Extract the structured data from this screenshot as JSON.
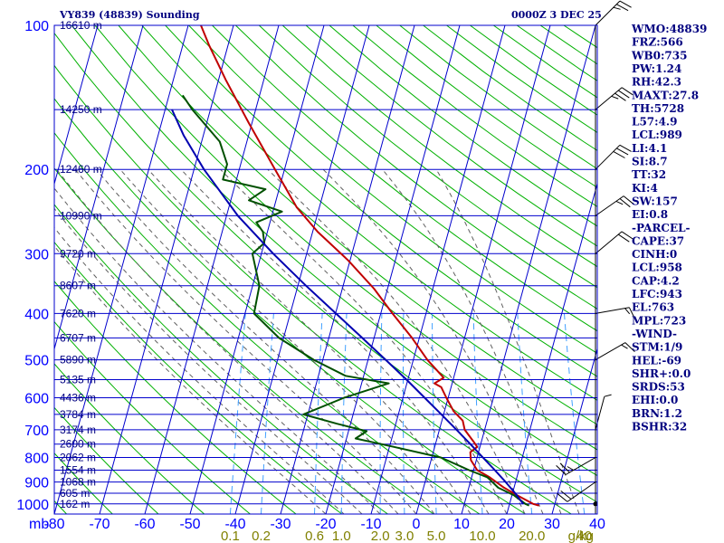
{
  "header": {
    "station_title": "VY839 (48839) Sounding",
    "valid_time": "0000Z  3 DEC 25"
  },
  "indices": [
    "WMO:48839",
    "FRZ:566",
    "WB0:735",
    "PW:1.24",
    "RH:42.3",
    "MAXT:27.8",
    "TH:5728",
    "L57:4.9",
    "LCL:989",
    "LI:4.1",
    "SI:8.7",
    "TT:32",
    "KI:4",
    "SW:157",
    "EI:0.8",
    "-PARCEL-",
    "CAPE:37",
    "CINH:0",
    "LCL:958",
    "CAP:4.2",
    "LFC:943",
    "EL:763",
    "MPL:723",
    "-WIND-",
    "STM:1/9",
    "HEL:-69",
    "SHR+:0.0",
    "SRDS:53",
    "EHI:0.0",
    "BRN:1.2",
    "BSHR:32"
  ],
  "colors": {
    "isobar": "#0000cd",
    "isotherm": "#0000cd",
    "dry_adiabat": "#00b000",
    "moist_adiabat": "#606060",
    "mixing_ratio": "#40a0ff",
    "temperature": "#c00000",
    "dewpoint": "#005000",
    "parcel": "#0000b0",
    "wind": "#000000",
    "text": "#000080",
    "axis_text": "#0000ff",
    "mr_text": "#808000"
  },
  "chart_data": {
    "type": "line",
    "title": "VY839 (48839) Sounding",
    "xlabel": "",
    "ylabel": "mb",
    "pressure_unit": "mb",
    "pressure_ticks": [
      100,
      200,
      300,
      400,
      500,
      600,
      700,
      800,
      900,
      1000
    ],
    "pressure_range": [
      100,
      1050
    ],
    "log_pressure": true,
    "temperature_ticks": [
      -80,
      -70,
      -60,
      -50,
      -40,
      -30,
      -20,
      -10,
      0,
      10,
      20,
      30,
      40
    ],
    "temperature_range": [
      -80,
      40
    ],
    "mixing_ratio_unit": "g/kg",
    "mixing_ratio_labels": [
      "0.1",
      "0.2",
      "0.6",
      "1.0",
      "2.0",
      "3.0",
      "5.0",
      "10.0",
      "20.0",
      "40"
    ],
    "mixing_ratio_values": [
      0.1,
      0.2,
      0.6,
      1.0,
      2.0,
      3.0,
      5.0,
      10.0,
      20.0,
      40.0
    ],
    "height_labels": [
      {
        "p": 100,
        "text": "16610 m"
      },
      {
        "p": 150,
        "text": "14250 m"
      },
      {
        "p": 200,
        "text": "12460 m"
      },
      {
        "p": 250,
        "text": "10990 m"
      },
      {
        "p": 300,
        "text": "9720 m"
      },
      {
        "p": 350,
        "text": "8607 m"
      },
      {
        "p": 400,
        "text": "7620 m"
      },
      {
        "p": 450,
        "text": "6707 m"
      },
      {
        "p": 500,
        "text": "5890 m"
      },
      {
        "p": 550,
        "text": "5135 m"
      },
      {
        "p": 600,
        "text": "4436 m"
      },
      {
        "p": 650,
        "text": "3784 m"
      },
      {
        "p": 700,
        "text": "3174 m"
      },
      {
        "p": 750,
        "text": "2600 m"
      },
      {
        "p": 800,
        "text": "2062 m"
      },
      {
        "p": 850,
        "text": "1554 m"
      },
      {
        "p": 900,
        "text": "1068 m"
      },
      {
        "p": 950,
        "text": "605 m"
      },
      {
        "p": 1000,
        "text": "162 m"
      }
    ],
    "series": [
      {
        "key": "temperature",
        "points": [
          [
            1008,
            26.6
          ],
          [
            1000,
            25.2
          ],
          [
            960,
            21.2
          ],
          [
            925,
            17.8
          ],
          [
            880,
            14.0
          ],
          [
            850,
            10.8
          ],
          [
            810,
            8.8
          ],
          [
            780,
            8.2
          ],
          [
            760,
            9.4
          ],
          [
            740,
            8.2
          ],
          [
            700,
            5.6
          ],
          [
            670,
            4.6
          ],
          [
            640,
            2.0
          ],
          [
            600,
            -0.4
          ],
          [
            570,
            -2.2
          ],
          [
            560,
            -3.9
          ],
          [
            545,
            -2.2
          ],
          [
            500,
            -6.9
          ],
          [
            450,
            -11.6
          ],
          [
            400,
            -17.4
          ],
          [
            355,
            -23.0
          ],
          [
            310,
            -30.4
          ],
          [
            270,
            -38.9
          ],
          [
            240,
            -45.0
          ],
          [
            200,
            -52.1
          ],
          [
            160,
            -60.7
          ],
          [
            130,
            -68.4
          ],
          [
            110,
            -74.2
          ],
          [
            100,
            -77.2
          ]
        ]
      },
      {
        "key": "dewpoint",
        "points": [
          [
            1008,
            24.4
          ],
          [
            1000,
            23.5
          ],
          [
            960,
            20.5
          ],
          [
            925,
            16.5
          ],
          [
            880,
            13.5
          ],
          [
            850,
            9.0
          ],
          [
            800,
            2.0
          ],
          [
            760,
            -9.0
          ],
          [
            730,
            -18.0
          ],
          [
            705,
            -16.0
          ],
          [
            680,
            -23.0
          ],
          [
            650,
            -31.0
          ],
          [
            600,
            -23.0
          ],
          [
            560,
            -14.0
          ],
          [
            540,
            -24.0
          ],
          [
            500,
            -32.0
          ],
          [
            450,
            -41.0
          ],
          [
            400,
            -48.0
          ],
          [
            350,
            -48.5
          ],
          [
            300,
            -52.0
          ],
          [
            285,
            -50.0
          ],
          [
            270,
            -51.0
          ],
          [
            258,
            -53.0
          ],
          [
            245,
            -48.0
          ],
          [
            232,
            -56.0
          ],
          [
            220,
            -53.0
          ],
          [
            210,
            -63.0
          ],
          [
            195,
            -63.0
          ],
          [
            175,
            -66.0
          ],
          [
            150,
            -74.0
          ],
          [
            140,
            -77.0
          ]
        ]
      },
      {
        "key": "parcel",
        "points": [
          [
            1000,
            23.0
          ],
          [
            950,
            20.6
          ],
          [
            900,
            17.8
          ],
          [
            850,
            14.7
          ],
          [
            800,
            11.3
          ],
          [
            750,
            7.7
          ],
          [
            700,
            3.8
          ],
          [
            650,
            -0.5
          ],
          [
            600,
            -5.2
          ],
          [
            550,
            -10.3
          ],
          [
            500,
            -16.1
          ],
          [
            450,
            -22.6
          ],
          [
            400,
            -29.9
          ],
          [
            350,
            -38.2
          ],
          [
            300,
            -47.4
          ],
          [
            250,
            -57.5
          ],
          [
            200,
            -67.8
          ],
          [
            170,
            -74.3
          ],
          [
            150,
            -78.5
          ]
        ]
      }
    ],
    "wind_barbs": [
      {
        "p": 100,
        "dir": 45,
        "speed": 25
      },
      {
        "p": 150,
        "dir": 50,
        "speed": 35
      },
      {
        "p": 200,
        "dir": 45,
        "speed": 30
      },
      {
        "p": 250,
        "dir": 55,
        "speed": 25
      },
      {
        "p": 300,
        "dir": 50,
        "speed": 20
      },
      {
        "p": 400,
        "dir": 80,
        "speed": 15
      },
      {
        "p": 500,
        "dir": 60,
        "speed": 15
      },
      {
        "p": 700,
        "dir": 15,
        "speed": 5
      },
      {
        "p": 800,
        "dir": 240,
        "speed": 25
      },
      {
        "p": 900,
        "dir": 235,
        "speed": 20
      }
    ]
  }
}
